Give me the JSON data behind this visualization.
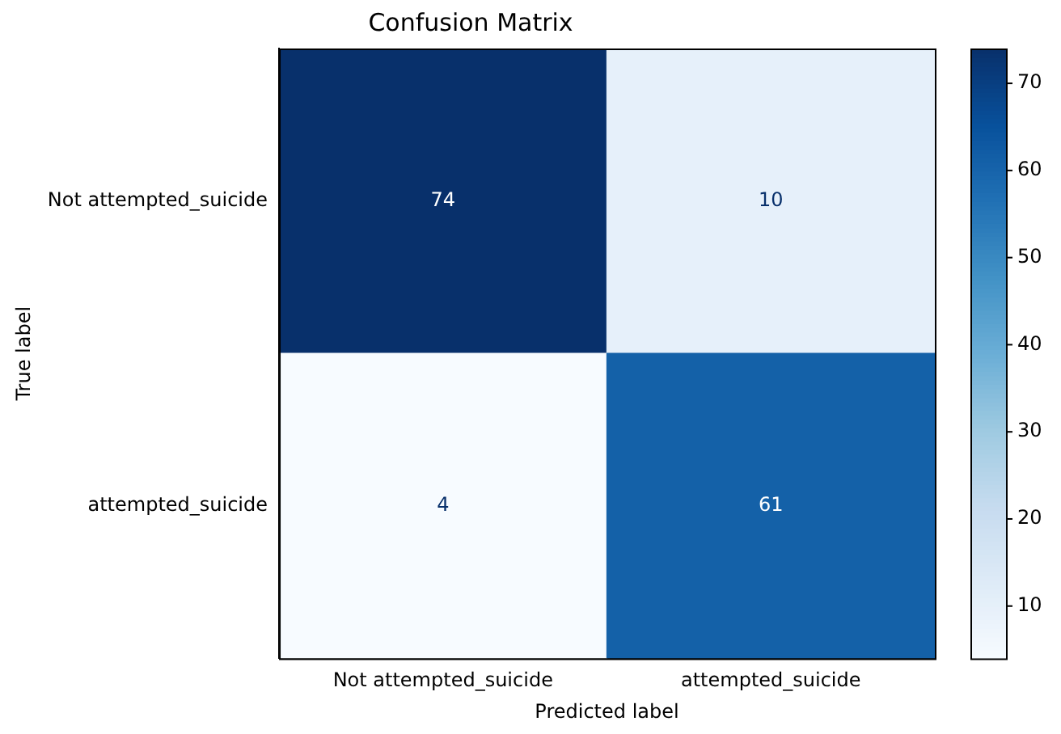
{
  "chart_data": {
    "type": "heatmap",
    "title": "Confusion Matrix",
    "xlabel": "Predicted label",
    "ylabel": "True label",
    "categories": [
      "Not attempted_suicide",
      "attempted_suicide"
    ],
    "y_categories": [
      "Not attempted_suicide",
      "attempted_suicide"
    ],
    "cells": [
      [
        74,
        10
      ],
      [
        4,
        61
      ]
    ],
    "clim": [
      4,
      74
    ],
    "cticks": [
      10,
      20,
      30,
      40,
      50,
      60,
      70
    ],
    "data_labels": true,
    "grid": false,
    "legend": false
  }
}
